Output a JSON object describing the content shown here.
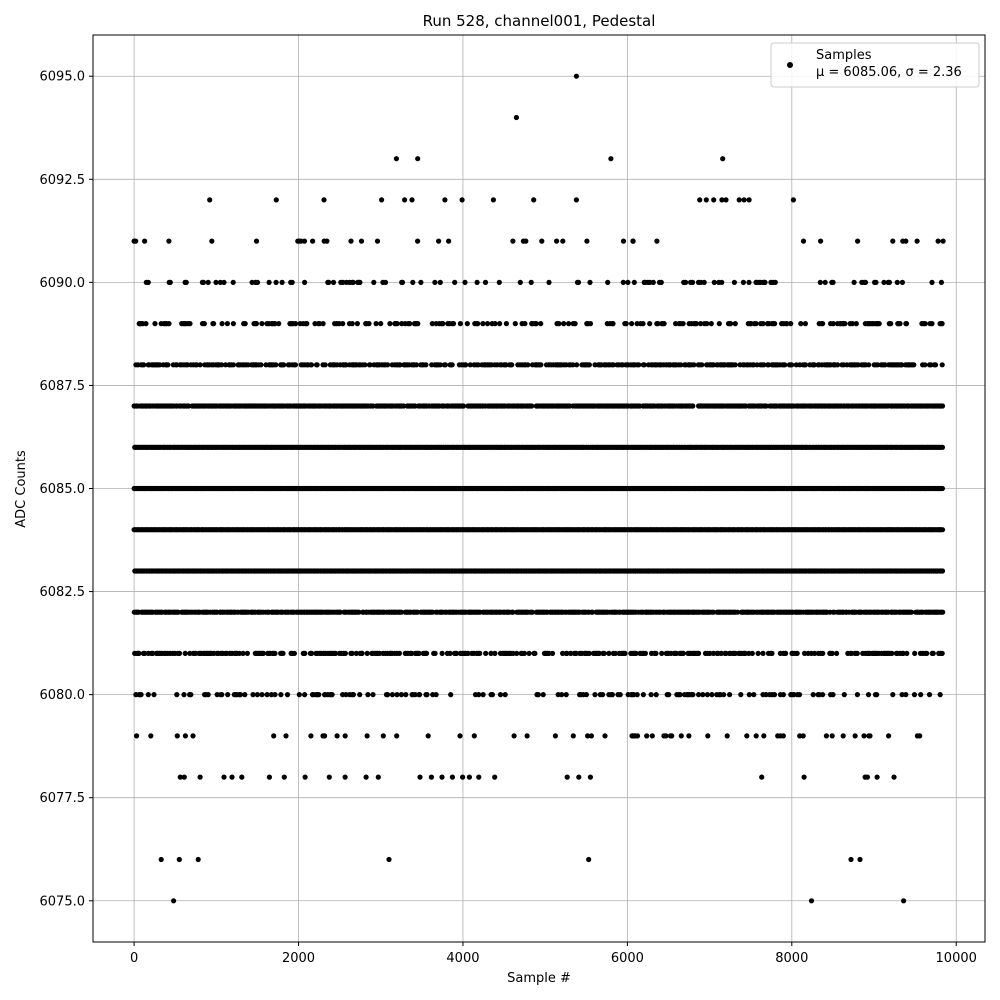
{
  "chart_data": {
    "type": "scatter",
    "title": "Run 528, channel001, Pedestal",
    "xlabel": "Sample #",
    "ylabel": "ADC Counts",
    "xlim": [
      -500,
      10350
    ],
    "ylim": [
      6074.0,
      6096.0
    ],
    "xticks": [
      0,
      2000,
      4000,
      6000,
      8000,
      10000
    ],
    "xtick_labels": [
      "0",
      "2000",
      "4000",
      "6000",
      "8000",
      "10000"
    ],
    "yticks": [
      6075.0,
      6077.5,
      6080.0,
      6082.5,
      6085.0,
      6087.5,
      6090.0,
      6092.5,
      6095.0
    ],
    "ytick_labels": [
      "6075.0",
      "6077.5",
      "6080.0",
      "6082.5",
      "6085.0",
      "6087.5",
      "6090.0",
      "6092.5",
      "6095.0"
    ],
    "grid": true,
    "legend": {
      "placement": "top-right",
      "entries": [
        {
          "name": "Samples",
          "line2": "μ = 6085.06, σ = 2.36"
        }
      ]
    },
    "marker_color": "#000000",
    "series": [
      {
        "name": "Samples",
        "x_range": [
          0,
          9840
        ],
        "sample_count": 9840,
        "level_density": [
          {
            "y": 6075,
            "density": 0.0005
          },
          {
            "y": 6076,
            "density": 0.001
          },
          {
            "y": 6077,
            "density": 0.002
          },
          {
            "y": 6078,
            "density": 0.005
          },
          {
            "y": 6079,
            "density": 0.011
          },
          {
            "y": 6080,
            "density": 0.028
          },
          {
            "y": 6081,
            "density": 0.062
          },
          {
            "y": 6082,
            "density": 0.11
          },
          {
            "y": 6083,
            "density": 0.158
          },
          {
            "y": 6084,
            "density": 0.168
          },
          {
            "y": 6085,
            "density": 0.168
          },
          {
            "y": 6086,
            "density": 0.145
          },
          {
            "y": 6087,
            "density": 0.11
          },
          {
            "y": 6088,
            "density": 0.07
          },
          {
            "y": 6089,
            "density": 0.038
          },
          {
            "y": 6090,
            "density": 0.016
          },
          {
            "y": 6091,
            "density": 0.006
          },
          {
            "y": 6092,
            "density": 0.0022
          },
          {
            "y": 6093,
            "density": 0.0006
          },
          {
            "y": 6094,
            "density": 0.0001
          },
          {
            "y": 6095,
            "density": 0.0001
          }
        ],
        "outliers": [
          {
            "x": 480,
            "y": 6075
          },
          {
            "x": 8240,
            "y": 6075
          },
          {
            "x": 9360,
            "y": 6075
          },
          {
            "x": 330,
            "y": 6076
          },
          {
            "x": 550,
            "y": 6076
          },
          {
            "x": 780,
            "y": 6076
          },
          {
            "x": 3100,
            "y": 6076
          },
          {
            "x": 5530,
            "y": 6076
          },
          {
            "x": 8720,
            "y": 6076
          },
          {
            "x": 8830,
            "y": 6076
          },
          {
            "x": 5380,
            "y": 6095
          },
          {
            "x": 4650,
            "y": 6094
          },
          {
            "x": 3190,
            "y": 6093
          },
          {
            "x": 3450,
            "y": 6093
          },
          {
            "x": 5800,
            "y": 6093
          },
          {
            "x": 7160,
            "y": 6093
          },
          {
            "x": 920,
            "y": 6092
          },
          {
            "x": 1730,
            "y": 6092
          },
          {
            "x": 2310,
            "y": 6092
          },
          {
            "x": 3010,
            "y": 6092
          },
          {
            "x": 3290,
            "y": 6092
          },
          {
            "x": 3380,
            "y": 6092
          },
          {
            "x": 3780,
            "y": 6092
          },
          {
            "x": 3990,
            "y": 6092
          },
          {
            "x": 4370,
            "y": 6092
          },
          {
            "x": 4860,
            "y": 6092
          },
          {
            "x": 5380,
            "y": 6092
          },
          {
            "x": 6880,
            "y": 6092
          },
          {
            "x": 6960,
            "y": 6092
          },
          {
            "x": 7050,
            "y": 6092
          },
          {
            "x": 7150,
            "y": 6092
          },
          {
            "x": 7200,
            "y": 6092
          },
          {
            "x": 7360,
            "y": 6092
          },
          {
            "x": 7420,
            "y": 6092
          },
          {
            "x": 7480,
            "y": 6092
          },
          {
            "x": 8020,
            "y": 6092
          },
          {
            "x": 0,
            "y": 6091
          },
          {
            "x": 9840,
            "y": 6091
          },
          {
            "x": 9350,
            "y": 6091
          },
          {
            "x": 8350,
            "y": 6091
          },
          {
            "x": 6070,
            "y": 6091
          }
        ]
      }
    ]
  }
}
